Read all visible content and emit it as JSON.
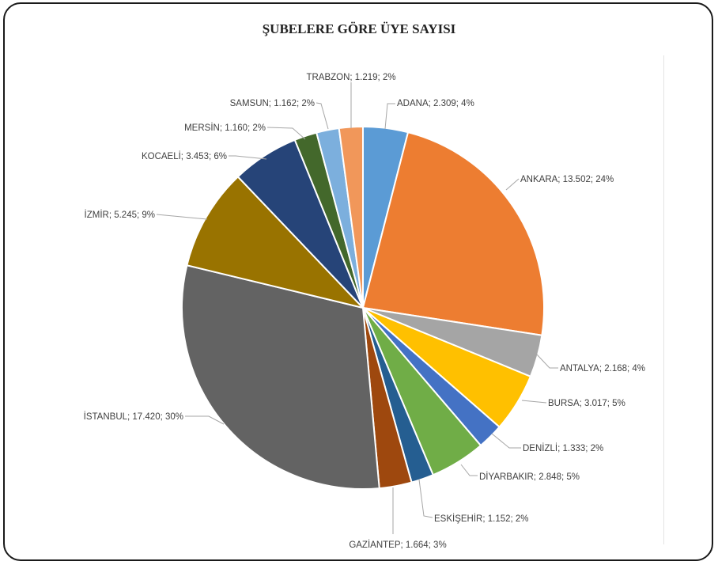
{
  "chart_data": {
    "type": "pie",
    "title": "ŞUBELERE GÖRE ÜYE SAYISI",
    "slices": [
      {
        "name": "ADANA",
        "value": 2309,
        "label": "ADANA; 2.309; 4%",
        "color": "#5B9BD5"
      },
      {
        "name": "ANKARA",
        "value": 13502,
        "label": "ANKARA; 13.502; 24%",
        "color": "#ED7D31"
      },
      {
        "name": "ANTALYA",
        "value": 2168,
        "label": "ANTALYA; 2.168; 4%",
        "color": "#A5A5A5"
      },
      {
        "name": "BURSA",
        "value": 3017,
        "label": "BURSA; 3.017; 5%",
        "color": "#FFC000"
      },
      {
        "name": "DENİZLİ",
        "value": 1333,
        "label": "DENİZLİ; 1.333; 2%",
        "color": "#4472C4"
      },
      {
        "name": "DİYARBAKIR",
        "value": 2848,
        "label": "DİYARBAKIR; 2.848; 5%",
        "color": "#70AD47"
      },
      {
        "name": "ESKİŞEHİR",
        "value": 1152,
        "label": "ESKİŞEHİR; 1.152; 2%",
        "color": "#255E91"
      },
      {
        "name": "GAZİANTEP",
        "value": 1664,
        "label": "GAZİANTEP; 1.664; 3%",
        "color": "#9E480E"
      },
      {
        "name": "İSTANBUL",
        "value": 17420,
        "label": "İSTANBUL; 17.420; 30%",
        "color": "#636363"
      },
      {
        "name": "İZMİR",
        "value": 5245,
        "label": "İZMİR; 5.245; 9%",
        "color": "#997300"
      },
      {
        "name": "KOCAELİ",
        "value": 3453,
        "label": "KOCAELİ; 3.453; 6%",
        "color": "#264478"
      },
      {
        "name": "MERSİN",
        "value": 1160,
        "label": "MERSİN; 1.160; 2%",
        "color": "#43682B"
      },
      {
        "name": "SAMSUN",
        "value": 1162,
        "label": "SAMSUN; 1.162; 2%",
        "color": "#7CAFDD"
      },
      {
        "name": "TRABZON",
        "value": 1219,
        "label": "TRABZON; 1.219; 2%",
        "color": "#F1975A"
      }
    ]
  }
}
